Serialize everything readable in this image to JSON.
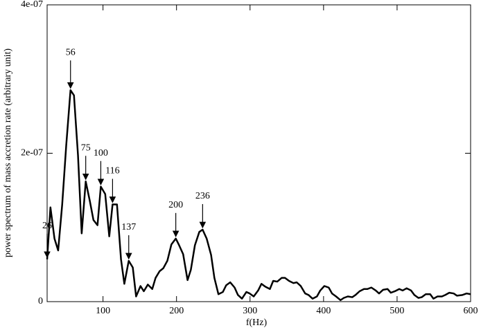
{
  "chart_data": {
    "type": "line",
    "xlabel": "f(Hz)",
    "ylabel": "power spectrum of  mass accretion rate (arbitrary unit)",
    "x": [
      24,
      28.5,
      34,
      39,
      44.5,
      50,
      55.8,
      60.5,
      66,
      71,
      76.5,
      82,
      87,
      92.5,
      97,
      103,
      108.5,
      113,
      119,
      124.5,
      129,
      135,
      140.5,
      145,
      151,
      155.5,
      161,
      167,
      171.5,
      177,
      182,
      187.5,
      193,
      199,
      203.5,
      209,
      215,
      219.5,
      225,
      231,
      235.5,
      241,
      247,
      251.5,
      257,
      263,
      267.5,
      273,
      279,
      283.5,
      289,
      295,
      299.5,
      305,
      311,
      315.5,
      321,
      327,
      331.5,
      337,
      343,
      347.5,
      353,
      359,
      363.5,
      369,
      375,
      379.5,
      385,
      391,
      395.5,
      401,
      407,
      411.5,
      417,
      423,
      427.5,
      433,
      439,
      443.5,
      449,
      455,
      459.5,
      465,
      471,
      475.5,
      481,
      487,
      491.5,
      497,
      503,
      507.5,
      513,
      519,
      523.5,
      529,
      533.5,
      539,
      545,
      549.5,
      555,
      561,
      565.5,
      571,
      577,
      581.5,
      589,
      594.5,
      600
    ],
    "series": [
      {
        "color": "#000000",
        "values": [
          5.7e-08,
          1.27e-07,
          8.5e-08,
          6.9e-08,
          1.31e-07,
          2.11e-07,
          2.85e-07,
          2.78e-07,
          1.97e-07,
          9.2e-08,
          1.62e-07,
          1.36e-07,
          1.1e-07,
          1.03e-07,
          1.55e-07,
          1.45e-07,
          8.8e-08,
          1.31e-07,
          1.31e-07,
          5.7e-08,
          2.4e-08,
          5.5e-08,
          4.6e-08,
          7e-09,
          2.1e-08,
          1.4e-08,
          2.3e-08,
          1.7e-08,
          3.2e-08,
          4.1e-08,
          4.5e-08,
          5.5e-08,
          7.7e-08,
          8.5e-08,
          7.6e-08,
          6.4e-08,
          2.9e-08,
          4.3e-08,
          7.6e-08,
          9.4e-08,
          9.7e-08,
          8.5e-08,
          6.3e-08,
          3.2e-08,
          1e-08,
          1.3e-08,
          2.2e-08,
          2.6e-08,
          1.9e-08,
          9e-09,
          4e-09,
          1.3e-08,
          1.1e-08,
          7e-09,
          1.5e-08,
          2.4e-08,
          2e-08,
          1.7e-08,
          2.8e-08,
          2.7e-08,
          3.2e-08,
          3.2e-08,
          2.8e-08,
          2.5e-08,
          2.6e-08,
          2.1e-08,
          1.1e-08,
          9e-09,
          4e-09,
          7e-09,
          1.5e-08,
          2.1e-08,
          1.9e-08,
          1.1e-08,
          7e-09,
          2e-09,
          5e-09,
          7e-09,
          6e-09,
          9e-09,
          1.4e-08,
          1.7e-08,
          1.7e-08,
          1.9e-08,
          1.5e-08,
          1.1e-08,
          1.6e-08,
          1.7e-08,
          1.2e-08,
          1.4e-08,
          1.7e-08,
          1.5e-08,
          1.8e-08,
          1.5e-08,
          9e-09,
          5e-09,
          6e-09,
          1e-08,
          1e-08,
          4e-09,
          7e-09,
          7e-09,
          9e-09,
          1.2e-08,
          1.1e-08,
          8e-09,
          9e-09,
          1.1e-08,
          1e-08
        ]
      }
    ],
    "xlim": [
      24,
      600
    ],
    "xticks": [
      100,
      200,
      300,
      400,
      500,
      600
    ],
    "ylim": [
      0,
      4e-07
    ],
    "yticks": [
      0,
      {
        "value": 2e-07,
        "label": "2e-07"
      },
      {
        "value": 4e-07,
        "label": "4e-07"
      }
    ],
    "grid": false,
    "annotations": [
      "26",
      "56",
      "75",
      "100",
      "116",
      "137",
      "200",
      "236"
    ]
  }
}
